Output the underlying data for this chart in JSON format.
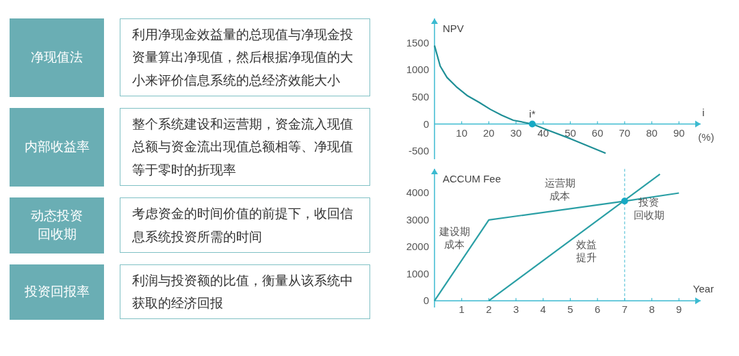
{
  "chart_data": [
    {
      "type": "other",
      "annotations": [
        "净现值法",
        "利用净现金效益量的总现值与净现金投资量算出净现值，然后根据净现值的大小来评价信息系统的总经济效能大小",
        "内部收益率",
        "整个系统建设和运营期，资金流入现值总额与资金流出现值总额相等、净现值等于零时的折现率",
        "动态投资回收期",
        "考虑资金的时间价值的前提下，收回信息系统投资所需的时间",
        "投资回报率",
        "利润与投资额的比值，衡量从该系统中获取的经济回报"
      ]
    },
    {
      "type": "line",
      "xlabel": "i",
      "ylabel": "NPV",
      "xlim": [
        0,
        98
      ],
      "ylim": [
        -650,
        1950
      ],
      "xticks": [
        10,
        20,
        30,
        40,
        50,
        60,
        70,
        80,
        90
      ],
      "yticks": [
        -500,
        0,
        500,
        1000,
        1500
      ],
      "series": [
        {
          "type": "line",
          "color": "#1f8f96",
          "x": [
            0,
            2.1,
            4.6,
            8,
            12.2,
            16.4,
            20.6,
            24.8,
            29,
            36,
            41.6,
            50,
            63
          ],
          "values": [
            1450,
            1070,
            860,
            690,
            520,
            400,
            270,
            160,
            70,
            0,
            -110,
            -270,
            -540
          ]
        },
        {
          "type": "scatter",
          "color": "#16a9c4",
          "marker": "circle",
          "x": [
            36
          ],
          "values": [
            0
          ]
        }
      ],
      "annotations": [
        {
          "text": "i*",
          "x": 36,
          "y": 0
        },
        "(%)"
      ]
    },
    {
      "type": "line",
      "xlabel": "Year",
      "ylabel": "ACCUM Fee",
      "xlim": [
        0,
        9.8
      ],
      "ylim": [
        -250,
        4900
      ],
      "xticks": [
        1,
        2,
        3,
        4,
        5,
        6,
        7,
        8,
        9
      ],
      "yticks": [
        0,
        1000,
        2000,
        3000,
        4000
      ],
      "series": [
        {
          "type": "line",
          "color": "#2a9fa5",
          "x": [
            0,
            2,
            7,
            9
          ],
          "values": [
            0,
            3000,
            3700,
            4000
          ]
        },
        {
          "type": "line",
          "color": "#2a9fa5",
          "x": [
            2,
            8.3
          ],
          "values": [
            0,
            4700
          ]
        },
        {
          "type": "scatter",
          "color": "#16a9c4",
          "marker": "circle",
          "x": [
            7
          ],
          "values": [
            3700
          ]
        }
      ],
      "ref_lines": [
        {
          "axis": "x",
          "value": 7,
          "color": "#5cc4d8",
          "line_style": "dashed"
        }
      ],
      "annotations": [
        "运营期成本",
        "投资回收期",
        "建设期成本",
        "效益提升"
      ]
    }
  ]
}
